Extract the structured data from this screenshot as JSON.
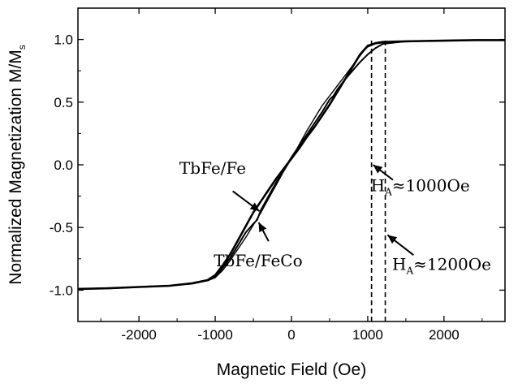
{
  "chart_data": {
    "type": "line",
    "title": "",
    "xlabel": "Magnetic Field (Oe)",
    "ylabel": {
      "main": "Normalized Magnetization M/M",
      "sub": "s"
    },
    "xlim": [
      -2800,
      2800
    ],
    "ylim": [
      -1.25,
      1.25
    ],
    "xticks": [
      {
        "value": -2000,
        "label": "-2000"
      },
      {
        "value": -1000,
        "label": "-1000"
      },
      {
        "value": 0,
        "label": "0"
      },
      {
        "value": 1000,
        "label": "1000"
      },
      {
        "value": 2000,
        "label": "2000"
      }
    ],
    "yticks": [
      {
        "value": -1.0,
        "label": "-1.0"
      },
      {
        "value": -0.5,
        "label": "-0.5"
      },
      {
        "value": 0.0,
        "label": "0.0"
      },
      {
        "value": 0.5,
        "label": "0.5"
      },
      {
        "value": 1.0,
        "label": "1.0"
      }
    ],
    "grid": false,
    "series": [
      {
        "name": "TbFe/Fe",
        "stroke_width": 2.6,
        "x": [
          -2800,
          -2400,
          -2000,
          -1600,
          -1300,
          -1100,
          -1000,
          -950,
          -900,
          -800,
          -700,
          -600,
          -500,
          -400,
          -300,
          -200,
          -100,
          0,
          100,
          200,
          300,
          400,
          500,
          600,
          700,
          800,
          850,
          900,
          1000,
          1100,
          1200,
          1500,
          2000,
          2400,
          2800
        ],
        "y": [
          -0.99,
          -0.985,
          -0.975,
          -0.965,
          -0.945,
          -0.92,
          -0.88,
          -0.84,
          -0.8,
          -0.71,
          -0.6,
          -0.49,
          -0.38,
          -0.29,
          -0.2,
          -0.11,
          -0.03,
          0.05,
          0.13,
          0.22,
          0.3,
          0.39,
          0.48,
          0.58,
          0.68,
          0.78,
          0.83,
          0.88,
          0.95,
          0.97,
          0.98,
          0.985,
          0.99,
          0.995,
          0.995
        ]
      },
      {
        "name": "TbFe/FeCo",
        "stroke_width": 2.0,
        "x": [
          -2800,
          -2400,
          -2000,
          -1600,
          -1300,
          -1100,
          -1000,
          -950,
          -900,
          -800,
          -700,
          -600,
          -500,
          -450,
          -400,
          -300,
          -200,
          -100,
          0,
          100,
          200,
          300,
          400,
          500,
          550,
          600,
          700,
          800,
          900,
          1000,
          1100,
          1200,
          1500,
          2000,
          2400,
          2800
        ],
        "y": [
          -0.99,
          -0.985,
          -0.975,
          -0.965,
          -0.945,
          -0.92,
          -0.89,
          -0.86,
          -0.82,
          -0.74,
          -0.64,
          -0.54,
          -0.47,
          -0.44,
          -0.36,
          -0.25,
          -0.14,
          -0.04,
          0.06,
          0.15,
          0.24,
          0.33,
          0.42,
          0.52,
          0.55,
          0.6,
          0.68,
          0.75,
          0.82,
          0.88,
          0.93,
          0.965,
          0.985,
          0.99,
          0.995,
          0.995
        ]
      },
      {
        "name": "",
        "stroke_width": 1.4,
        "x": [
          -2800,
          -2000,
          -1600,
          -1300,
          -1100,
          -1000,
          -950,
          -900,
          -800,
          -700,
          -600,
          -500,
          -400,
          -300,
          -200,
          -100,
          0,
          100,
          200,
          300,
          400,
          500,
          600,
          700,
          800,
          900,
          950,
          1000,
          1100,
          1200,
          1500,
          2000,
          2800
        ],
        "y": [
          -0.99,
          -0.975,
          -0.965,
          -0.95,
          -0.925,
          -0.9,
          -0.87,
          -0.84,
          -0.76,
          -0.67,
          -0.58,
          -0.48,
          -0.38,
          -0.27,
          -0.16,
          -0.05,
          0.05,
          0.16,
          0.27,
          0.37,
          0.47,
          0.55,
          0.63,
          0.71,
          0.79,
          0.87,
          0.91,
          0.94,
          0.965,
          0.975,
          0.985,
          0.99,
          0.995
        ]
      }
    ],
    "reference_lines": [
      {
        "x": 1050,
        "y_from": -1.25,
        "y_to": 1.0
      },
      {
        "x": 1230,
        "y_from": -1.25,
        "y_to": 0.99
      }
    ],
    "annotations": [
      {
        "text": "TbFe/Fe",
        "x": -1470,
        "y": -0.07,
        "arrow_from": [
          -770,
          -0.21
        ],
        "arrow_to": [
          -420,
          -0.37
        ]
      },
      {
        "text": "TbFe/FeCo",
        "x": -1020,
        "y": -0.81,
        "arrow_from": [
          -300,
          -0.61
        ],
        "arrow_to": [
          -430,
          -0.46
        ]
      },
      {
        "text": "H",
        "sub": "A",
        "rest": "≈1000Oe",
        "x": 1040,
        "y": -0.21,
        "arrow_from": [
          1330,
          -0.12
        ],
        "arrow_to": [
          1070,
          0.0
        ]
      },
      {
        "text": "H",
        "sub": "A",
        "rest": "≈1200Oe",
        "x": 1320,
        "y": -0.84,
        "arrow_from": [
          1600,
          -0.72
        ],
        "arrow_to": [
          1260,
          -0.56
        ]
      }
    ]
  }
}
